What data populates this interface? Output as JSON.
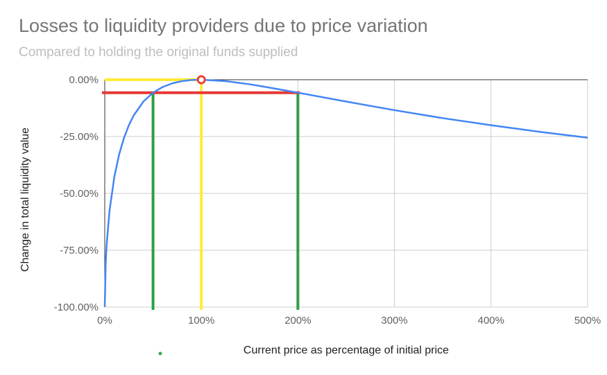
{
  "chart_data": {
    "type": "line",
    "title": "Losses to liquidity providers due to price variation",
    "subtitle": "Compared to holding the original funds supplied",
    "xlabel": "Current price as percentage of initial price",
    "ylabel": "Change in total liquidity value",
    "xlim": [
      0,
      500
    ],
    "ylim": [
      -100,
      0
    ],
    "x_ticks": [
      0,
      100,
      200,
      300,
      400,
      500
    ],
    "x_tick_labels": [
      "0%",
      "100%",
      "200%",
      "300%",
      "400%",
      "500%"
    ],
    "y_ticks": [
      0,
      -25,
      -50,
      -75,
      -100
    ],
    "y_tick_labels": [
      "0.00%",
      "-25.00%",
      "-50.00%",
      "-75.00%",
      "-100.00%"
    ],
    "grid": true,
    "series": [
      {
        "color": "#4285f4",
        "x": [
          0,
          1,
          2,
          5,
          10,
          15,
          20,
          25,
          30,
          40,
          50,
          60,
          70,
          80,
          90,
          100,
          125,
          150,
          175,
          200,
          250,
          300,
          350,
          400,
          450,
          500
        ],
        "y": [
          -100,
          -80.2,
          -72.3,
          -57.4,
          -42.5,
          -32.7,
          -25.5,
          -20.0,
          -15.7,
          -9.6,
          -5.7,
          -3.2,
          -1.6,
          -0.6,
          -0.1,
          0,
          -0.6,
          -2.0,
          -3.8,
          -5.7,
          -9.6,
          -13.4,
          -16.9,
          -20.0,
          -22.9,
          -25.5
        ]
      }
    ],
    "annotations": {
      "point_color": "#ea4335",
      "point": {
        "x": 100,
        "y": 0
      },
      "yellow_color": "#ffeb3b",
      "yellow_vertical_x": 100,
      "yellow_horizontal_y": 0,
      "red_color": "#e53935",
      "red_horizontal_y": -5.7,
      "green_color": "#2e9e44",
      "green_vertical_x": [
        50,
        200
      ]
    }
  },
  "legend": {
    "dot_color": "#34a853"
  }
}
